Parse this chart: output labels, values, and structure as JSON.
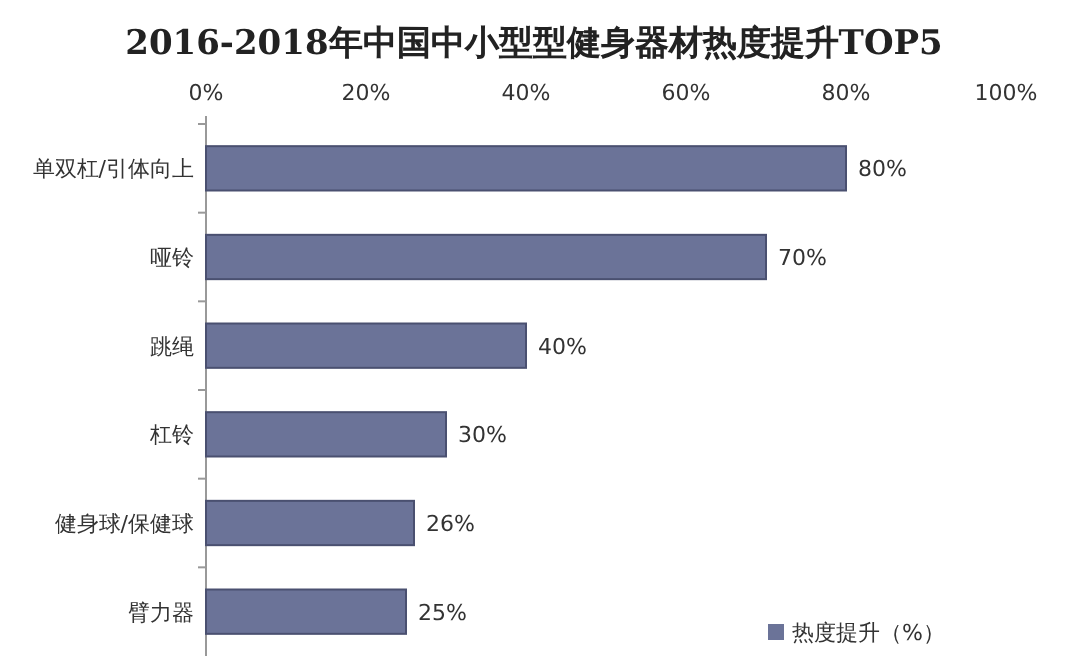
{
  "chart_data": {
    "type": "bar",
    "orientation": "horizontal",
    "title": "2016-2018年中国中小型型健身器材热度提升TOP5",
    "categories": [
      "单双杠/引体向上",
      "哑铃",
      "跳绳",
      "杠铃",
      "健身球/保健球",
      "臂力器"
    ],
    "series": [
      {
        "name": "热度提升（%）",
        "color": "#6b7398",
        "values": [
          80,
          70,
          40,
          30,
          26,
          25
        ],
        "value_labels": [
          "80%",
          "70%",
          "40%",
          "30%",
          "26%",
          "25%"
        ]
      }
    ],
    "xlim": [
      0,
      100
    ],
    "xticks": [
      {
        "value": 0,
        "label": "0%"
      },
      {
        "value": 20,
        "label": "20%"
      },
      {
        "value": 40,
        "label": "40%"
      },
      {
        "value": 60,
        "label": "60%"
      },
      {
        "value": 80,
        "label": "80%"
      },
      {
        "value": 100,
        "label": "100%"
      }
    ],
    "grid": false,
    "legend": "bottom right"
  }
}
